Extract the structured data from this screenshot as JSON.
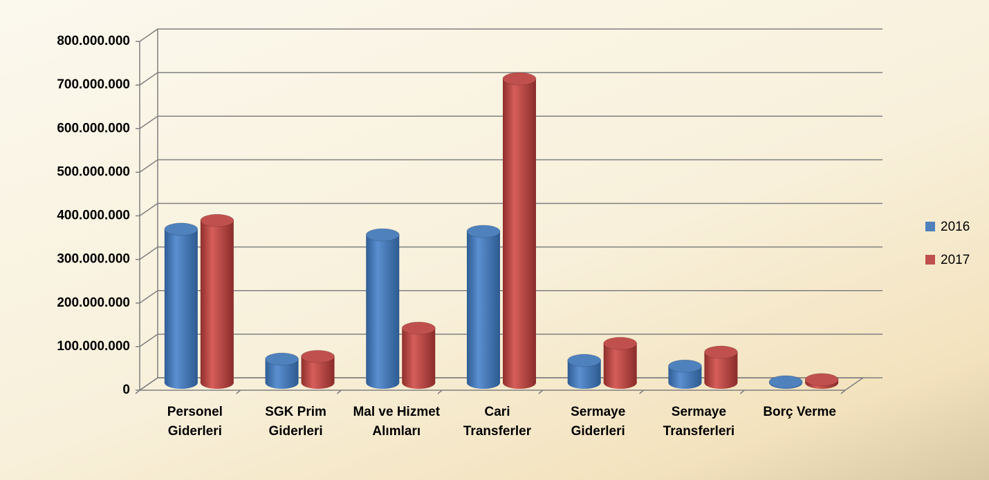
{
  "chart_data": {
    "type": "bar3d",
    "categories": [
      "Personel Giderleri",
      "SGK Prim Giderleri",
      "Mal ve Hizmet Alımları",
      "Cari Transferler",
      "Sermaye Giderleri",
      "Sermaye Transferleri",
      "Borç Verme"
    ],
    "series": [
      {
        "name": "2016",
        "color": "#4f81bd",
        "values": [
          355000000,
          57000000,
          342000000,
          350000000,
          54000000,
          41000000,
          5000000
        ]
      },
      {
        "name": "2017",
        "color": "#c0504d",
        "values": [
          375000000,
          63000000,
          128000000,
          700000000,
          93000000,
          73000000,
          10000000
        ]
      }
    ],
    "ylim": [
      0,
      800000000
    ],
    "yticks": [
      0,
      {
        "value": 100000000,
        "label": "100.000.000"
      },
      {
        "value": 200000000,
        "label": "200.000.000"
      },
      {
        "value": 300000000,
        "label": "300.000.000"
      },
      {
        "value": 400000000,
        "label": "400.000.000"
      },
      {
        "value": 500000000,
        "label": "500.000.000"
      },
      {
        "value": 600000000,
        "label": "600.000.000"
      },
      {
        "value": 700000000,
        "label": "700.000.000"
      },
      {
        "value": 800000000,
        "label": "800.000.000"
      }
    ],
    "grid": true,
    "legend": "right"
  }
}
